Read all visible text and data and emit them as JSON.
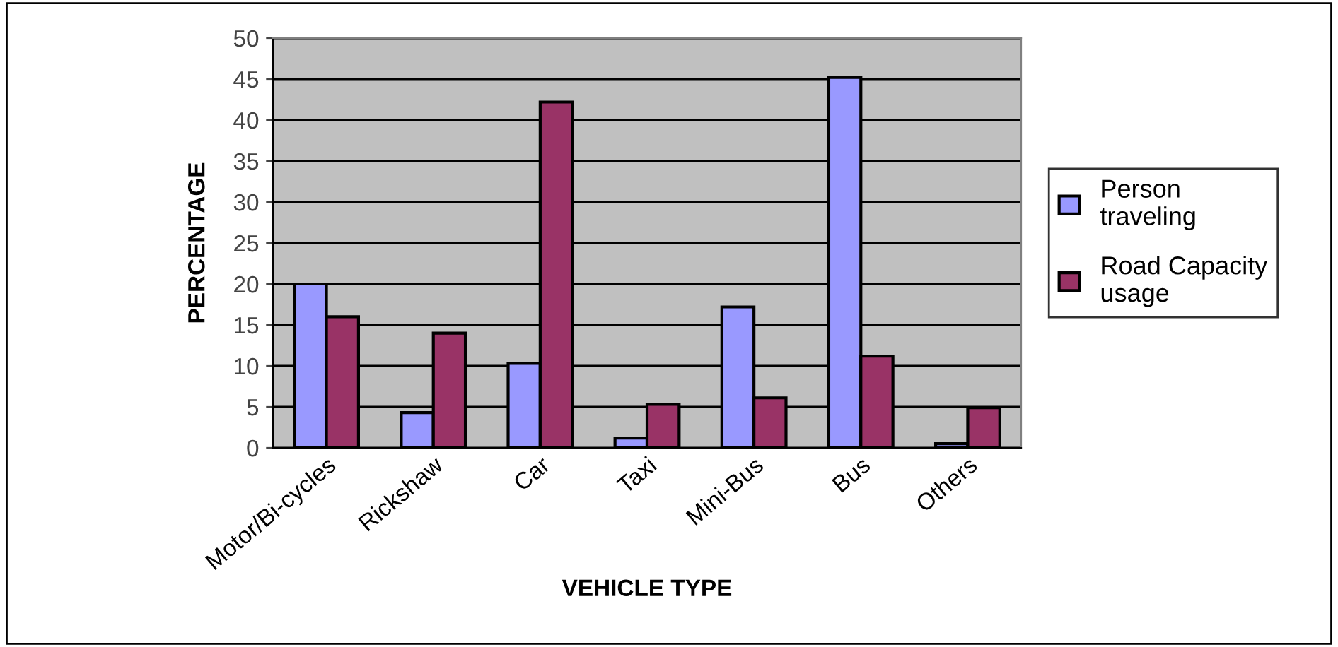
{
  "chart_data": {
    "type": "bar",
    "xlabel": "VEHICLE TYPE",
    "ylabel": "PERCENTAGE",
    "categories": [
      "Motor/Bi-cycles",
      "Rickshaw",
      "Car",
      "Taxi",
      "Mini-Bus",
      "Bus",
      "Others"
    ],
    "series": [
      {
        "name": "Person\ntraveling",
        "color": "#9999ff",
        "values": [
          20,
          4.3,
          10.3,
          1.2,
          17.2,
          45.2,
          0.5
        ]
      },
      {
        "name": "Road Capacity\nusage",
        "color": "#993366",
        "values": [
          16,
          14,
          42.2,
          5.3,
          6.1,
          11.2,
          4.9
        ]
      }
    ],
    "ylim": [
      0,
      50
    ],
    "yticks": [
      0,
      5,
      10,
      15,
      20,
      25,
      30,
      35,
      40,
      45,
      50
    ],
    "grid": "y",
    "legend": "right"
  }
}
